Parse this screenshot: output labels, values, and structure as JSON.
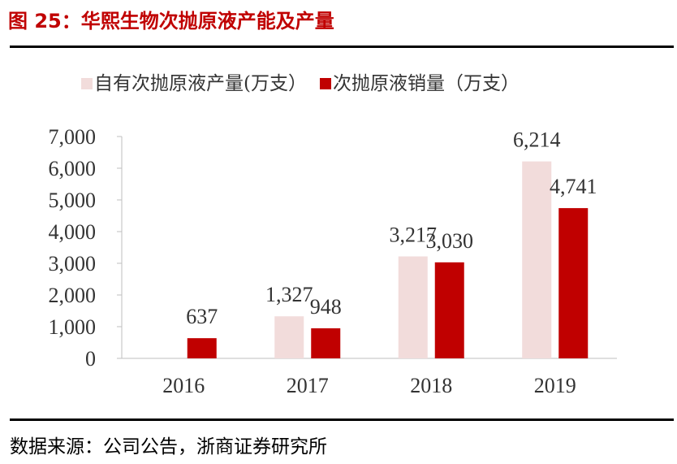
{
  "figure": {
    "title": "图 25：华熙生物次抛原液产能及产量",
    "source": "数据来源：公司公告，浙商证券研究所"
  },
  "chart_data": {
    "type": "bar",
    "categories": [
      "2016",
      "2017",
      "2018",
      "2019"
    ],
    "series": [
      {
        "name": "自有次抛原液产量(万支）",
        "color": "#f2dcdb",
        "values": [
          null,
          1327,
          3217,
          6214
        ]
      },
      {
        "name": "次抛原液销量（万支）",
        "color": "#c00000",
        "values": [
          637,
          948,
          3030,
          4741
        ]
      }
    ],
    "ylim": [
      0,
      7000
    ],
    "yticks": [
      0,
      1000,
      2000,
      3000,
      4000,
      5000,
      6000,
      7000
    ],
    "legend_position": "top",
    "grid": false
  }
}
